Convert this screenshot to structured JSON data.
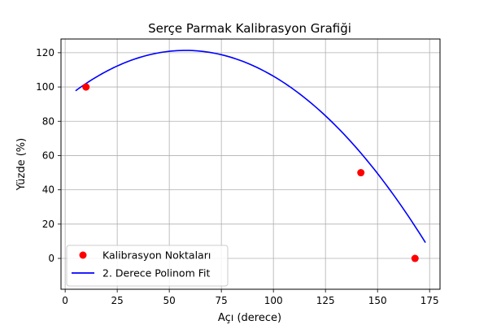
{
  "chart_data": {
    "type": "scatter",
    "title": "Serçe Parmak Kalibrasyon Grafiği",
    "xlabel": "Açı (derece)",
    "ylabel": "Yüzde (%)",
    "xlim": [
      -2,
      180
    ],
    "ylim": [
      -18,
      128
    ],
    "x_ticks": [
      0,
      25,
      50,
      75,
      100,
      125,
      150,
      175
    ],
    "y_ticks": [
      0,
      20,
      40,
      60,
      80,
      100,
      120
    ],
    "grid": true,
    "legend_position": "lower-left",
    "series": [
      {
        "name": "Kalibrasyon Noktaları",
        "kind": "scatter",
        "color": "#ff0000",
        "points": [
          {
            "x": 10,
            "y": 100
          },
          {
            "x": 142,
            "y": 50
          },
          {
            "x": 168,
            "y": 0
          }
        ]
      },
      {
        "name": "2. Derece Polinom Fit",
        "kind": "line",
        "color": "#0000ff",
        "x_range": [
          5,
          173
        ],
        "coefficients": [
          93.1,
          0.977,
          -0.00845
        ]
      }
    ]
  }
}
